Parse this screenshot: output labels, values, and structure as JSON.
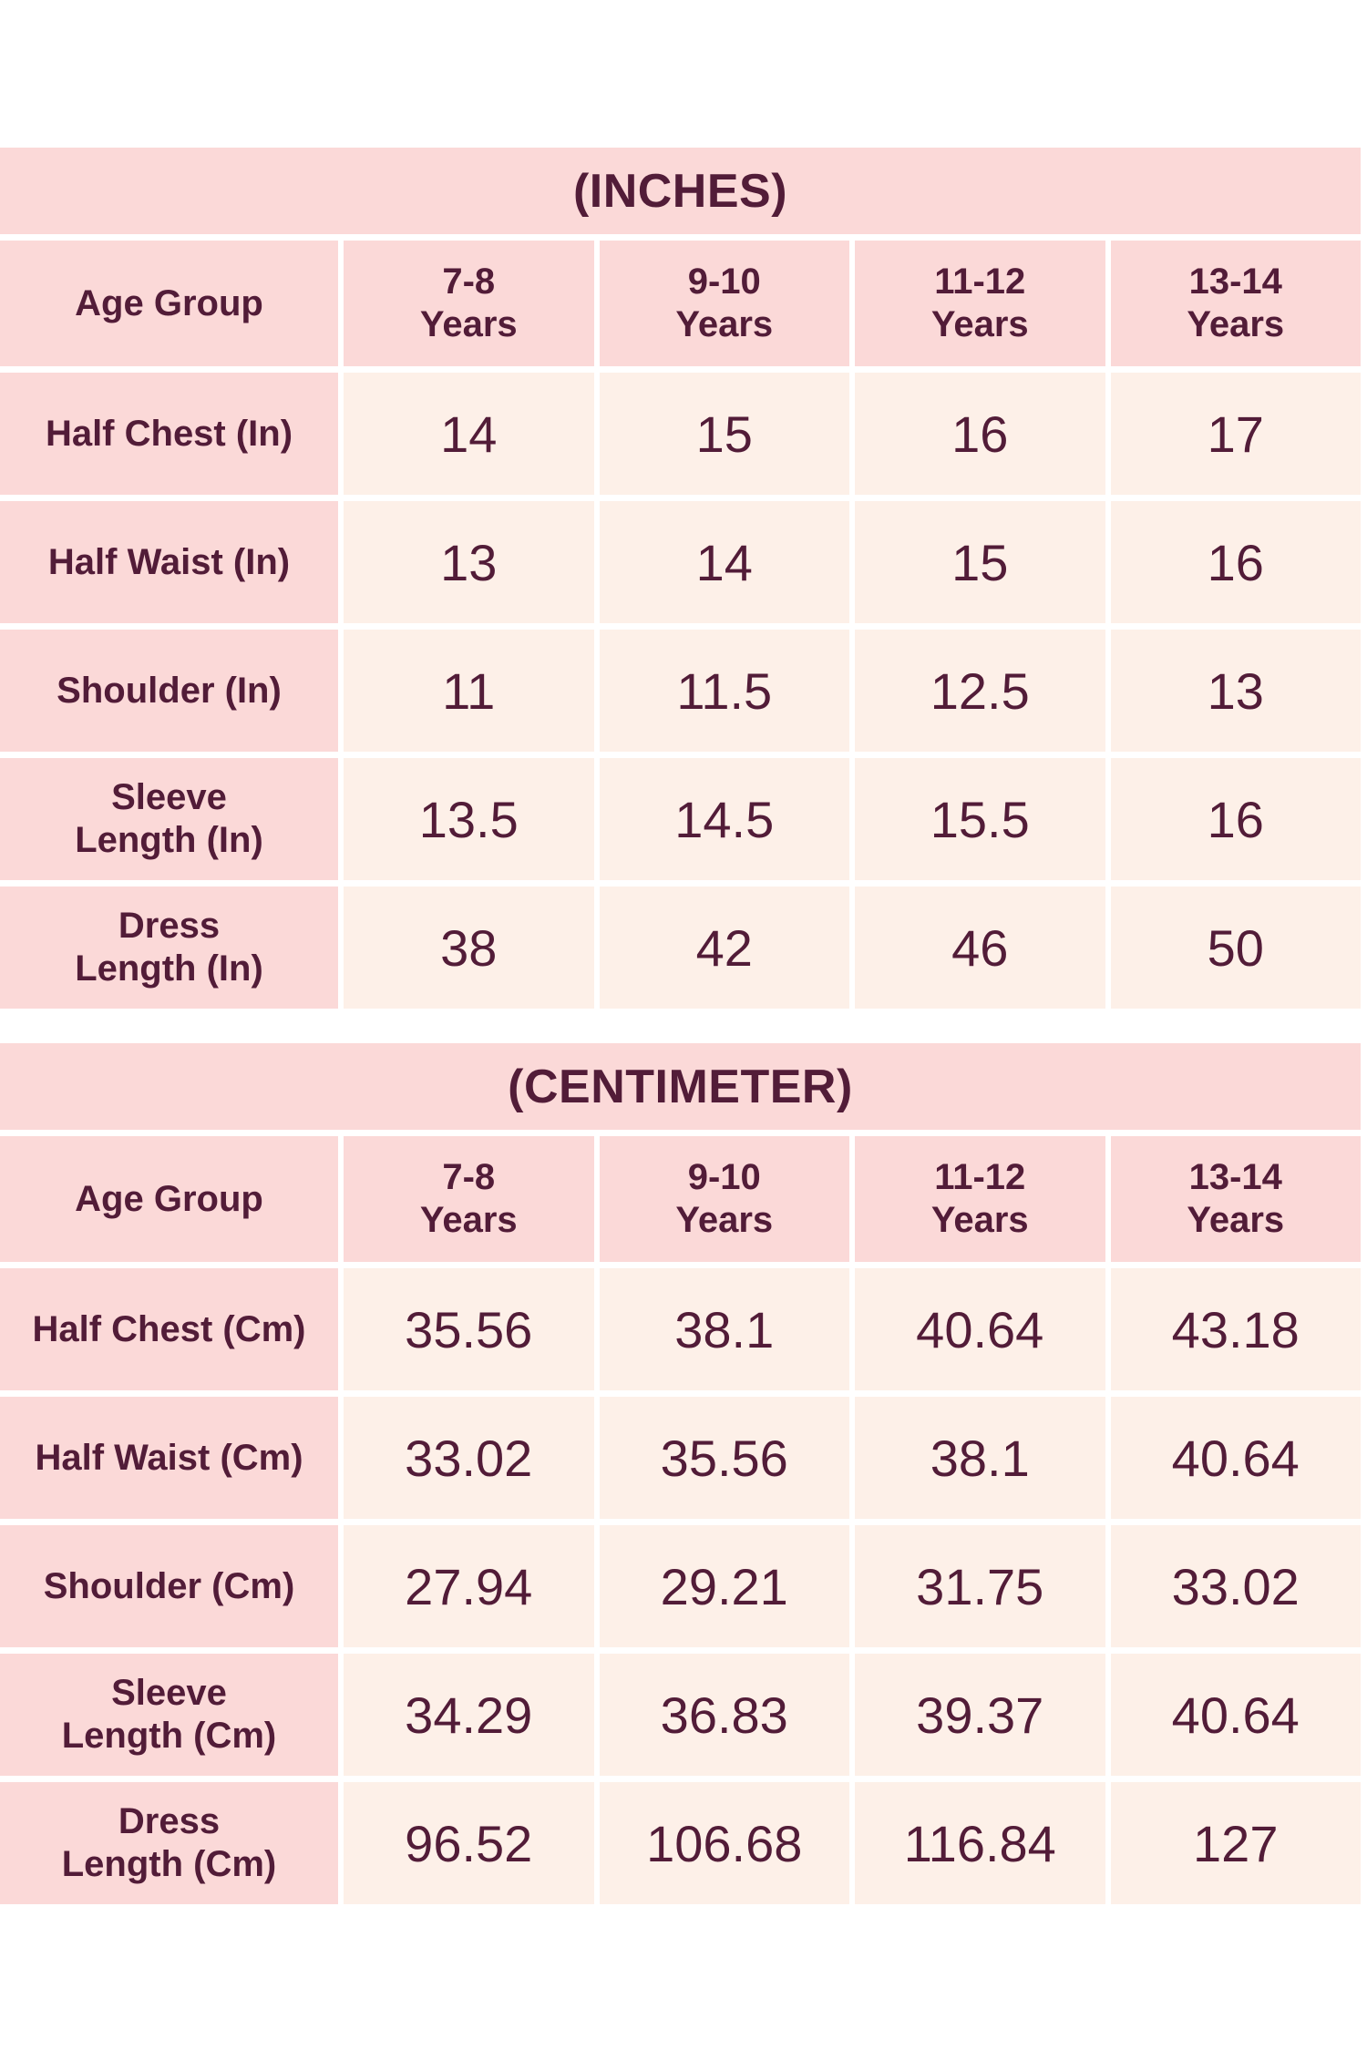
{
  "colors": {
    "page_background": "#ffffff",
    "band_pink": "#fbd9d8",
    "cell_cream": "#fdf0e8",
    "text_maroon": "#521c38"
  },
  "tables": [
    {
      "title": "(INCHES)",
      "header": {
        "label": "Age Group",
        "columns": [
          [
            "7-8",
            "Years"
          ],
          [
            "9-10",
            "Years"
          ],
          [
            "11-12",
            "Years"
          ],
          [
            "13-14",
            "Years"
          ]
        ]
      },
      "rows": [
        {
          "label": "Half Chest (In)",
          "values": [
            "14",
            "15",
            "16",
            "17"
          ]
        },
        {
          "label": "Half Waist (In)",
          "values": [
            "13",
            "14",
            "15",
            "16"
          ]
        },
        {
          "label": "Shoulder (In)",
          "values": [
            "11",
            "11.5",
            "12.5",
            "13"
          ]
        },
        {
          "label": [
            "Sleeve",
            "Length (In)"
          ],
          "values": [
            "13.5",
            "14.5",
            "15.5",
            "16"
          ]
        },
        {
          "label": [
            "Dress",
            "Length (In)"
          ],
          "values": [
            "38",
            "42",
            "46",
            "50"
          ]
        }
      ]
    },
    {
      "title": "(CENTIMETER)",
      "header": {
        "label": "Age Group",
        "columns": [
          [
            "7-8",
            "Years"
          ],
          [
            "9-10",
            "Years"
          ],
          [
            "11-12",
            "Years"
          ],
          [
            "13-14",
            "Years"
          ]
        ]
      },
      "rows": [
        {
          "label": "Half Chest (Cm)",
          "values": [
            "35.56",
            "38.1",
            "40.64",
            "43.18"
          ]
        },
        {
          "label": "Half Waist (Cm)",
          "values": [
            "33.02",
            "35.56",
            "38.1",
            "40.64"
          ]
        },
        {
          "label": "Shoulder (Cm)",
          "values": [
            "27.94",
            "29.21",
            "31.75",
            "33.02"
          ]
        },
        {
          "label": [
            "Sleeve",
            "Length (Cm)"
          ],
          "values": [
            "34.29",
            "36.83",
            "39.37",
            "40.64"
          ]
        },
        {
          "label": [
            "Dress",
            "Length (Cm)"
          ],
          "values": [
            "96.52",
            "106.68",
            "116.84",
            "127"
          ]
        }
      ]
    }
  ]
}
